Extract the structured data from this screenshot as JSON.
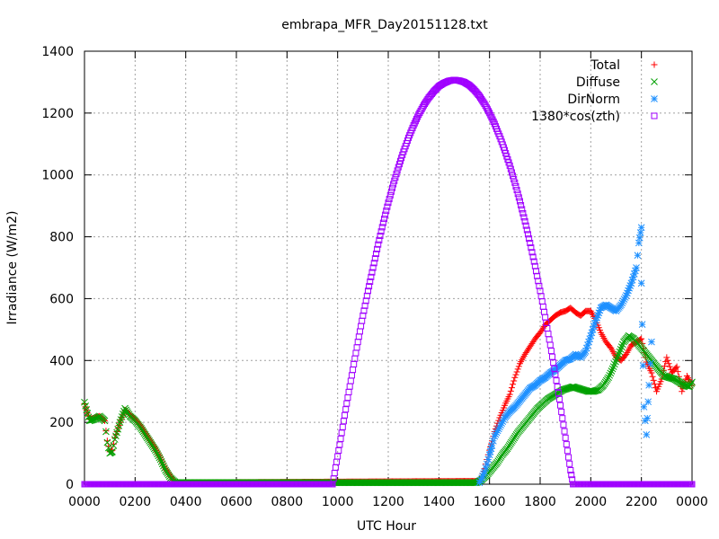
{
  "chart_data": {
    "type": "scatter",
    "title": "embrapa_MFR_Day20151128.txt",
    "xlabel": "UTC Hour",
    "ylabel": "Irradiance (W/m2)",
    "xlim": [
      0,
      24
    ],
    "ylim": [
      0,
      1400
    ],
    "x_ticks": [
      {
        "value": 0,
        "label": "0000"
      },
      {
        "value": 2,
        "label": "0200"
      },
      {
        "value": 4,
        "label": "0400"
      },
      {
        "value": 6,
        "label": "0600"
      },
      {
        "value": 8,
        "label": "0800"
      },
      {
        "value": 10,
        "label": "1000"
      },
      {
        "value": 12,
        "label": "1200"
      },
      {
        "value": 14,
        "label": "1400"
      },
      {
        "value": 16,
        "label": "1600"
      },
      {
        "value": 18,
        "label": "1800"
      },
      {
        "value": 20,
        "label": "2000"
      },
      {
        "value": 22,
        "label": "2200"
      },
      {
        "value": 24,
        "label": "0000"
      }
    ],
    "y_ticks": [
      0,
      200,
      400,
      600,
      800,
      1000,
      1200,
      1400
    ],
    "grid": true,
    "legend_position": "top-right",
    "series": [
      {
        "name": "Total",
        "marker": "plus",
        "color": "#ff0000",
        "points": [
          [
            0.0,
            260
          ],
          [
            0.2,
            210
          ],
          [
            0.4,
            215
          ],
          [
            0.6,
            220
          ],
          [
            0.8,
            205
          ],
          [
            0.9,
            140
          ],
          [
            1.0,
            105
          ],
          [
            1.1,
            110
          ],
          [
            1.2,
            150
          ],
          [
            1.4,
            200
          ],
          [
            1.6,
            240
          ],
          [
            1.8,
            225
          ],
          [
            2.0,
            210
          ],
          [
            2.2,
            190
          ],
          [
            2.4,
            165
          ],
          [
            2.6,
            140
          ],
          [
            2.8,
            115
          ],
          [
            3.0,
            85
          ],
          [
            3.2,
            50
          ],
          [
            3.4,
            25
          ],
          [
            3.6,
            5
          ],
          [
            15.6,
            10
          ],
          [
            15.7,
            25
          ],
          [
            15.8,
            50
          ],
          [
            15.9,
            80
          ],
          [
            16.0,
            110
          ],
          [
            16.1,
            140
          ],
          [
            16.2,
            170
          ],
          [
            16.4,
            215
          ],
          [
            16.6,
            255
          ],
          [
            16.8,
            290
          ],
          [
            17.0,
            345
          ],
          [
            17.2,
            390
          ],
          [
            17.4,
            420
          ],
          [
            17.6,
            445
          ],
          [
            17.8,
            470
          ],
          [
            18.0,
            490
          ],
          [
            18.2,
            515
          ],
          [
            18.4,
            530
          ],
          [
            18.6,
            545
          ],
          [
            18.8,
            555
          ],
          [
            19.0,
            560
          ],
          [
            19.2,
            570
          ],
          [
            19.4,
            555
          ],
          [
            19.6,
            545
          ],
          [
            19.8,
            560
          ],
          [
            20.0,
            560
          ],
          [
            20.2,
            530
          ],
          [
            20.4,
            490
          ],
          [
            20.6,
            460
          ],
          [
            20.8,
            440
          ],
          [
            21.0,
            410
          ],
          [
            21.2,
            400
          ],
          [
            21.4,
            420
          ],
          [
            21.6,
            450
          ],
          [
            21.8,
            460
          ],
          [
            22.0,
            470
          ],
          [
            22.2,
            395
          ],
          [
            22.4,
            360
          ],
          [
            22.6,
            300
          ],
          [
            22.8,
            340
          ],
          [
            23.0,
            410
          ],
          [
            23.2,
            360
          ],
          [
            23.4,
            380
          ],
          [
            23.6,
            300
          ],
          [
            23.8,
            350
          ],
          [
            24.0,
            320
          ]
        ]
      },
      {
        "name": "Diffuse",
        "marker": "cross",
        "color": "#00a000",
        "points": [
          [
            0.0,
            265
          ],
          [
            0.2,
            205
          ],
          [
            0.4,
            210
          ],
          [
            0.6,
            220
          ],
          [
            0.8,
            205
          ],
          [
            0.9,
            135
          ],
          [
            1.0,
            100
          ],
          [
            1.1,
            105
          ],
          [
            1.2,
            145
          ],
          [
            1.4,
            200
          ],
          [
            1.6,
            245
          ],
          [
            1.8,
            220
          ],
          [
            2.0,
            205
          ],
          [
            2.2,
            185
          ],
          [
            2.4,
            160
          ],
          [
            2.6,
            135
          ],
          [
            2.8,
            110
          ],
          [
            3.0,
            80
          ],
          [
            3.2,
            45
          ],
          [
            3.4,
            20
          ],
          [
            3.6,
            5
          ],
          [
            15.5,
            5
          ],
          [
            15.7,
            15
          ],
          [
            15.9,
            30
          ],
          [
            16.1,
            50
          ],
          [
            16.3,
            70
          ],
          [
            16.5,
            95
          ],
          [
            16.7,
            115
          ],
          [
            16.9,
            140
          ],
          [
            17.1,
            165
          ],
          [
            17.3,
            185
          ],
          [
            17.5,
            205
          ],
          [
            17.7,
            225
          ],
          [
            17.9,
            245
          ],
          [
            18.1,
            260
          ],
          [
            18.3,
            275
          ],
          [
            18.5,
            285
          ],
          [
            18.7,
            295
          ],
          [
            18.9,
            305
          ],
          [
            19.1,
            310
          ],
          [
            19.3,
            315
          ],
          [
            19.5,
            310
          ],
          [
            19.7,
            305
          ],
          [
            19.9,
            300
          ],
          [
            20.1,
            300
          ],
          [
            20.3,
            305
          ],
          [
            20.5,
            320
          ],
          [
            20.7,
            345
          ],
          [
            20.9,
            380
          ],
          [
            21.1,
            420
          ],
          [
            21.3,
            460
          ],
          [
            21.5,
            480
          ],
          [
            21.7,
            470
          ],
          [
            21.9,
            450
          ],
          [
            22.1,
            430
          ],
          [
            22.3,
            410
          ],
          [
            22.5,
            390
          ],
          [
            22.7,
            370
          ],
          [
            22.9,
            350
          ],
          [
            23.1,
            345
          ],
          [
            23.3,
            340
          ],
          [
            23.5,
            330
          ],
          [
            23.7,
            320
          ],
          [
            23.9,
            315
          ],
          [
            24.0,
            330
          ]
        ]
      },
      {
        "name": "DirNorm",
        "marker": "star",
        "color": "#1e90ff",
        "points": [
          [
            15.6,
            5
          ],
          [
            15.7,
            20
          ],
          [
            15.8,
            40
          ],
          [
            15.9,
            65
          ],
          [
            16.0,
            95
          ],
          [
            16.1,
            125
          ],
          [
            16.2,
            155
          ],
          [
            16.4,
            185
          ],
          [
            16.6,
            215
          ],
          [
            16.8,
            235
          ],
          [
            17.0,
            250
          ],
          [
            17.2,
            270
          ],
          [
            17.4,
            290
          ],
          [
            17.6,
            310
          ],
          [
            17.8,
            320
          ],
          [
            18.0,
            335
          ],
          [
            18.2,
            345
          ],
          [
            18.4,
            360
          ],
          [
            18.6,
            370
          ],
          [
            18.8,
            385
          ],
          [
            19.0,
            400
          ],
          [
            19.2,
            405
          ],
          [
            19.4,
            420
          ],
          [
            19.6,
            410
          ],
          [
            19.8,
            430
          ],
          [
            20.0,
            480
          ],
          [
            20.2,
            530
          ],
          [
            20.4,
            570
          ],
          [
            20.6,
            580
          ],
          [
            20.8,
            570
          ],
          [
            21.0,
            560
          ],
          [
            21.2,
            580
          ],
          [
            21.4,
            610
          ],
          [
            21.6,
            650
          ],
          [
            21.8,
            700
          ],
          [
            21.9,
            780
          ],
          [
            22.0,
            830
          ],
          [
            22.0,
            650
          ],
          [
            22.1,
            250
          ],
          [
            22.2,
            160
          ],
          [
            22.3,
            320
          ],
          [
            22.4,
            460
          ]
        ]
      },
      {
        "name": "1380*cos(zth)",
        "marker": "box",
        "color": "#a000ff",
        "points": [
          [
            0.0,
            0
          ],
          [
            1.0,
            0
          ],
          [
            2.0,
            0
          ],
          [
            3.0,
            0
          ],
          [
            4.0,
            0
          ],
          [
            5.0,
            0
          ],
          [
            6.0,
            0
          ],
          [
            7.0,
            0
          ],
          [
            8.0,
            0
          ],
          [
            9.0,
            0
          ],
          [
            9.6,
            0
          ],
          [
            9.8,
            0
          ],
          [
            10.0,
            90
          ],
          [
            10.2,
            185
          ],
          [
            10.4,
            280
          ],
          [
            10.6,
            370
          ],
          [
            10.8,
            460
          ],
          [
            11.0,
            545
          ],
          [
            11.2,
            625
          ],
          [
            11.4,
            700
          ],
          [
            11.6,
            775
          ],
          [
            11.8,
            845
          ],
          [
            12.0,
            910
          ],
          [
            12.2,
            970
          ],
          [
            12.4,
            1025
          ],
          [
            12.6,
            1075
          ],
          [
            12.8,
            1120
          ],
          [
            13.0,
            1160
          ],
          [
            13.2,
            1195
          ],
          [
            13.4,
            1225
          ],
          [
            13.6,
            1250
          ],
          [
            13.8,
            1270
          ],
          [
            14.0,
            1287
          ],
          [
            14.2,
            1297
          ],
          [
            14.4,
            1304
          ],
          [
            14.6,
            1307
          ],
          [
            14.8,
            1305
          ],
          [
            15.0,
            1300
          ],
          [
            15.2,
            1290
          ],
          [
            15.4,
            1275
          ],
          [
            15.6,
            1255
          ],
          [
            15.8,
            1230
          ],
          [
            16.0,
            1200
          ],
          [
            16.2,
            1165
          ],
          [
            16.4,
            1125
          ],
          [
            16.6,
            1080
          ],
          [
            16.8,
            1030
          ],
          [
            17.0,
            975
          ],
          [
            17.2,
            915
          ],
          [
            17.4,
            850
          ],
          [
            17.6,
            780
          ],
          [
            17.8,
            705
          ],
          [
            18.0,
            625
          ],
          [
            18.2,
            540
          ],
          [
            18.4,
            450
          ],
          [
            18.6,
            355
          ],
          [
            18.8,
            255
          ],
          [
            19.0,
            150
          ],
          [
            19.2,
            45
          ],
          [
            19.3,
            0
          ],
          [
            20.0,
            0
          ],
          [
            21.0,
            0
          ],
          [
            22.0,
            0
          ],
          [
            23.0,
            0
          ],
          [
            24.0,
            0
          ]
        ]
      }
    ]
  }
}
